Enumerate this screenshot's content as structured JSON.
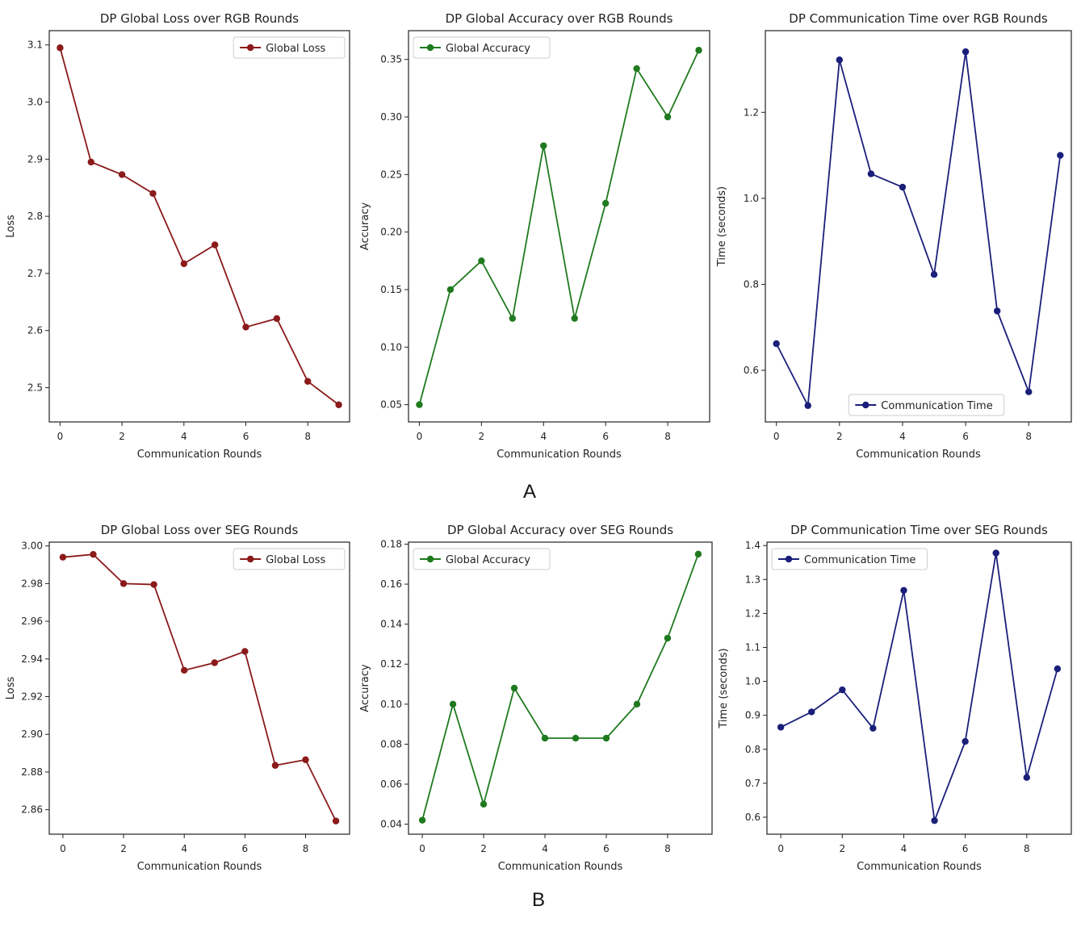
{
  "figure": {
    "panel_labels": [
      "A",
      "B"
    ]
  },
  "chart_data": [
    {
      "type": "line",
      "title": "DP Global Loss over RGB Rounds",
      "xlabel": "Communication Rounds",
      "ylabel": "Loss",
      "x": [
        0,
        1,
        2,
        3,
        4,
        5,
        6,
        7,
        8,
        9
      ],
      "xticks": [
        "0",
        "2",
        "4",
        "6",
        "8"
      ],
      "xtick_values": [
        0,
        2,
        4,
        6,
        8
      ],
      "xlim": [
        -0.35,
        9.35
      ],
      "yticks": [
        "2.5",
        "2.6",
        "2.7",
        "2.8",
        "2.9",
        "3.0",
        "3.1"
      ],
      "ytick_values": [
        2.5,
        2.6,
        2.7,
        2.8,
        2.9,
        3.0,
        3.1
      ],
      "ylim": [
        2.44,
        3.125
      ],
      "series": [
        {
          "name": "Global Loss",
          "color": "#8b1a1a",
          "values": [
            3.095,
            2.895,
            2.873,
            2.84,
            2.717,
            2.75,
            2.606,
            2.621,
            2.511,
            2.47
          ]
        }
      ],
      "legend": "top-right",
      "grid": false
    },
    {
      "type": "line",
      "title": "DP Global Accuracy over RGB Rounds",
      "xlabel": "Communication Rounds",
      "ylabel": "Accuracy",
      "x": [
        0,
        1,
        2,
        3,
        4,
        5,
        6,
        7,
        8,
        9
      ],
      "xticks": [
        "0",
        "2",
        "4",
        "6",
        "8"
      ],
      "xtick_values": [
        0,
        2,
        4,
        6,
        8
      ],
      "xlim": [
        -0.35,
        9.35
      ],
      "yticks": [
        "0.05",
        "0.10",
        "0.15",
        "0.20",
        "0.25",
        "0.30",
        "0.35"
      ],
      "ytick_values": [
        0.05,
        0.1,
        0.15,
        0.2,
        0.25,
        0.3,
        0.35
      ],
      "ylim": [
        0.035,
        0.375
      ],
      "series": [
        {
          "name": "Global Accuracy",
          "color": "#1f7a1f",
          "values": [
            0.05,
            0.15,
            0.175,
            0.125,
            0.275,
            0.125,
            0.225,
            0.342,
            0.3,
            0.358
          ]
        }
      ],
      "legend": "top-left",
      "grid": false
    },
    {
      "type": "line",
      "title": "DP Communication Time over RGB Rounds",
      "xlabel": "Communication Rounds",
      "ylabel": "Time (seconds)",
      "x": [
        0,
        1,
        2,
        3,
        4,
        5,
        6,
        7,
        8,
        9
      ],
      "xticks": [
        "0",
        "2",
        "4",
        "6",
        "8"
      ],
      "xtick_values": [
        0,
        2,
        4,
        6,
        8
      ],
      "xlim": [
        -0.35,
        9.35
      ],
      "yticks": [
        "0.6",
        "0.8",
        "1.0",
        "1.2"
      ],
      "ytick_values": [
        0.6,
        0.8,
        1.0,
        1.2
      ],
      "ylim": [
        0.48,
        1.39
      ],
      "series": [
        {
          "name": "Communication Time",
          "color": "#1a1f7a",
          "values": [
            0.662,
            0.518,
            1.322,
            1.057,
            1.026,
            0.823,
            1.341,
            0.738,
            0.55,
            1.1
          ]
        }
      ],
      "legend": "bottom-center",
      "grid": false
    },
    {
      "type": "line",
      "title": "DP Global Loss over SEG Rounds",
      "xlabel": "Communication Rounds",
      "ylabel": "Loss",
      "x": [
        0,
        1,
        2,
        3,
        4,
        5,
        6,
        7,
        8,
        9
      ],
      "xticks": [
        "0",
        "2",
        "4",
        "6",
        "8"
      ],
      "xtick_values": [
        0,
        2,
        4,
        6,
        8
      ],
      "xlim": [
        -0.45,
        9.45
      ],
      "yticks": [
        "2.86",
        "2.88",
        "2.90",
        "2.92",
        "2.94",
        "2.96",
        "2.98",
        "3.00"
      ],
      "ytick_values": [
        2.86,
        2.88,
        2.9,
        2.92,
        2.94,
        2.96,
        2.98,
        3.0
      ],
      "ylim": [
        2.847,
        3.002
      ],
      "series": [
        {
          "name": "Global Loss",
          "color": "#8b1a1a",
          "values": [
            2.994,
            2.9955,
            2.98,
            2.9795,
            2.934,
            2.938,
            2.944,
            2.8835,
            2.8865,
            2.854
          ]
        }
      ],
      "legend": "top-right",
      "grid": false
    },
    {
      "type": "line",
      "title": "DP Global Accuracy over SEG Rounds",
      "xlabel": "Communication Rounds",
      "ylabel": "Accuracy",
      "x": [
        0,
        1,
        2,
        3,
        4,
        5,
        6,
        7,
        8,
        9
      ],
      "xticks": [
        "0",
        "2",
        "4",
        "6",
        "8"
      ],
      "xtick_values": [
        0,
        2,
        4,
        6,
        8
      ],
      "xlim": [
        -0.45,
        9.45
      ],
      "yticks": [
        "0.04",
        "0.06",
        "0.08",
        "0.10",
        "0.12",
        "0.14",
        "0.16",
        "0.18"
      ],
      "ytick_values": [
        0.04,
        0.06,
        0.08,
        0.1,
        0.12,
        0.14,
        0.16,
        0.18
      ],
      "ylim": [
        0.035,
        0.181
      ],
      "series": [
        {
          "name": "Global Accuracy",
          "color": "#1f7a1f",
          "values": [
            0.042,
            0.1,
            0.05,
            0.108,
            0.083,
            0.083,
            0.083,
            0.1,
            0.133,
            0.175
          ]
        }
      ],
      "legend": "top-left",
      "grid": false
    },
    {
      "type": "line",
      "title": "DP Communication Time over SEG Rounds",
      "xlabel": "Communication Rounds",
      "ylabel": "Time (seconds)",
      "x": [
        0,
        1,
        2,
        3,
        4,
        5,
        6,
        7,
        8,
        9
      ],
      "xticks": [
        "0",
        "2",
        "4",
        "6",
        "8"
      ],
      "xtick_values": [
        0,
        2,
        4,
        6,
        8
      ],
      "xlim": [
        -0.45,
        9.45
      ],
      "yticks": [
        "0.6",
        "0.7",
        "0.8",
        "0.9",
        "1.0",
        "1.1",
        "1.2",
        "1.3",
        "1.4"
      ],
      "ytick_values": [
        0.6,
        0.7,
        0.8,
        0.9,
        1.0,
        1.1,
        1.2,
        1.3,
        1.4
      ],
      "ylim": [
        0.55,
        1.41
      ],
      "series": [
        {
          "name": "Communication Time",
          "color": "#1a1f7a",
          "values": [
            0.865,
            0.91,
            0.975,
            0.862,
            1.268,
            0.59,
            0.823,
            1.378,
            0.717,
            1.037
          ]
        }
      ],
      "legend": "top-left",
      "grid": false
    }
  ]
}
